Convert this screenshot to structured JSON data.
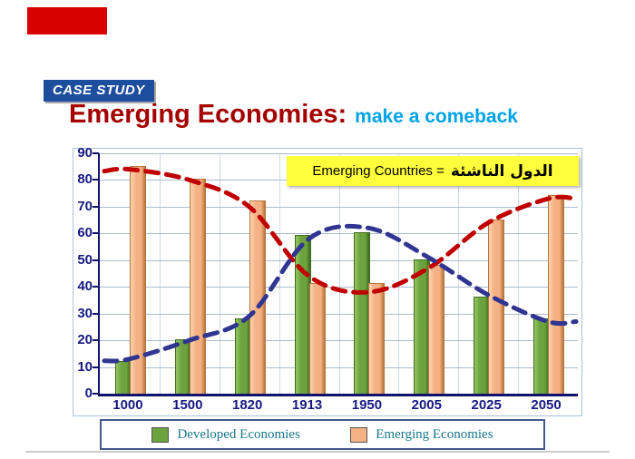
{
  "colors": {
    "accent_red": "#d90000",
    "badge_blue": "#1d4e9e",
    "title_red": "#a50000",
    "title_cyan": "#00a3e6",
    "annotation_yellow": "#ffff3b",
    "axis_navy": "#151a80",
    "legend_teal": "#18788c"
  },
  "slide": {
    "case_study_label": "CASE STUDY",
    "title_main": "Emerging Economies:",
    "title_sub": "make a comeback",
    "annotation_en": "Emerging Countries =",
    "annotation_ar": "الدول الناشئة"
  },
  "chart_data": {
    "type": "bar",
    "title": "Emerging Economies: make a comeback",
    "categories": [
      "1000",
      "1500",
      "1820",
      "1913",
      "1950",
      "2005",
      "2025",
      "2050"
    ],
    "series": [
      {
        "name": "Developed Economies",
        "color": "#6ca33e",
        "light": "#93c663",
        "dark": "#3f6b1d",
        "values": [
          12,
          20,
          28,
          59,
          60,
          50,
          36,
          28
        ]
      },
      {
        "name": "Emerging Economies",
        "color": "#f5b183",
        "light": "#fbd4b0",
        "dark": "#b8763c",
        "values": [
          85,
          80,
          72,
          41,
          41,
          48,
          65,
          74
        ]
      }
    ],
    "trend_lines": [
      {
        "name": "Emerging trend",
        "color": "#c00000",
        "values": [
          84,
          80,
          70,
          44,
          38,
          47,
          64,
          73
        ]
      },
      {
        "name": "Developed trend",
        "color": "#2f3590",
        "values": [
          13,
          20,
          29,
          58,
          62,
          51,
          37,
          27
        ]
      }
    ],
    "xlabel": "",
    "ylabel": "",
    "ylim": [
      0,
      90
    ],
    "yticks": [
      0,
      10,
      20,
      30,
      40,
      50,
      60,
      70,
      80,
      90
    ],
    "grid": true,
    "legend_position": "bottom"
  }
}
